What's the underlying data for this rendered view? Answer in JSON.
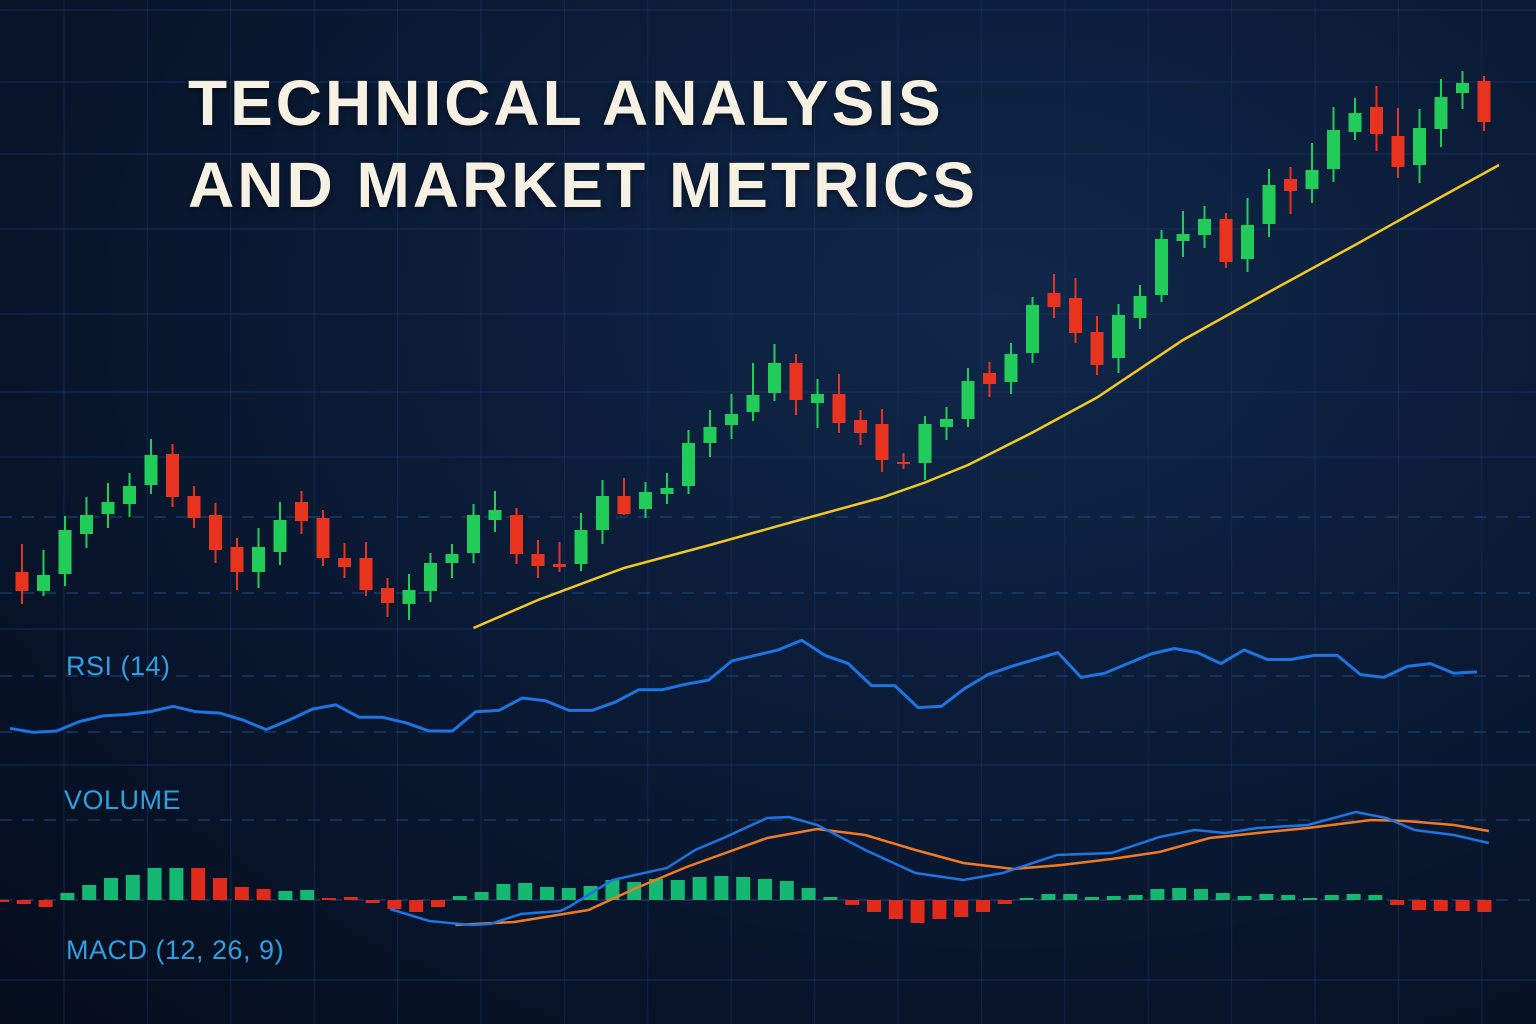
{
  "title": {
    "line1": "TECHNICAL ANALYSIS",
    "line2": "AND MARKET METRICS"
  },
  "panels": {
    "rsi_label": "RSI (14)",
    "volume_label": "VOLUME",
    "macd_label": "MACD (12, 26, 9)"
  },
  "colors": {
    "background": "#0b1c38",
    "grid": "#1a3560",
    "up": "#22cc58",
    "down": "#e8341f",
    "hist_up": "#15b872",
    "hist_down": "#e02b1a",
    "moving_average": "#f2c922",
    "rsi": "#1e74e0",
    "macd": "#1e74e0",
    "signal": "#f07a22",
    "label": "#2f9fe2",
    "title": "#f6f1e2"
  },
  "chart_data": [
    {
      "type": "candlestick",
      "title": "TECHNICAL ANALYSIS AND MARKET METRICS",
      "grid": true,
      "ylim": [
        0,
        128
      ],
      "ohlc": [
        [
          13.6,
          19.2,
          7.2,
          9.8
        ],
        [
          9.8,
          18,
          8.8,
          13
        ],
        [
          13.2,
          24.8,
          10.8,
          22
        ],
        [
          21.2,
          28.6,
          18.4,
          25
        ],
        [
          25.2,
          31.4,
          22.4,
          27.6
        ],
        [
          27.2,
          33.4,
          24.6,
          30.8
        ],
        [
          31,
          40.2,
          29.2,
          37
        ],
        [
          37.2,
          39.2,
          26.6,
          28.6
        ],
        [
          28.8,
          30.8,
          22.4,
          24.4
        ],
        [
          25,
          27.4,
          15.4,
          18
        ],
        [
          18.6,
          20.4,
          10,
          13.6
        ],
        [
          13.6,
          22.4,
          10.4,
          18.6
        ],
        [
          17.6,
          27.6,
          15,
          24
        ],
        [
          27.6,
          29.8,
          21.2,
          23.8
        ],
        [
          24.4,
          26,
          14.8,
          16.4
        ],
        [
          16.4,
          19.4,
          12.4,
          14.6
        ],
        [
          16.4,
          19.6,
          8.8,
          10
        ],
        [
          10.4,
          12.4,
          4.6,
          7.4
        ],
        [
          7.2,
          13.2,
          4,
          10
        ],
        [
          9.8,
          17.4,
          7.6,
          15.4
        ],
        [
          15.4,
          19.2,
          12.4,
          17.2
        ],
        [
          17.4,
          27.2,
          15.4,
          25
        ],
        [
          24,
          29.8,
          21.6,
          26
        ],
        [
          25,
          26.4,
          15.2,
          17.2
        ],
        [
          17.2,
          20,
          12.4,
          14.8
        ],
        [
          15.2,
          19.6,
          13.6,
          14.6
        ],
        [
          15.2,
          25.4,
          13.8,
          22
        ],
        [
          22,
          32,
          19.2,
          28.8
        ],
        [
          28.8,
          32.4,
          25,
          25.2
        ],
        [
          26.2,
          31.6,
          24.4,
          29.6
        ],
        [
          29.2,
          33.4,
          27.2,
          30.4
        ],
        [
          30.8,
          42,
          29.2,
          39.4
        ],
        [
          39.4,
          46,
          36.6,
          42.6
        ],
        [
          43,
          49.2,
          40.2,
          45.2
        ],
        [
          45.6,
          55.4,
          43.8,
          49
        ],
        [
          49.4,
          59.2,
          47.8,
          55.4
        ],
        [
          55.4,
          57.2,
          45,
          48
        ],
        [
          47.4,
          52.2,
          42.4,
          49.2
        ],
        [
          49.2,
          53.2,
          41.4,
          43.4
        ],
        [
          44,
          46,
          39,
          41.4
        ],
        [
          43.2,
          46.2,
          33.6,
          36
        ],
        [
          35.6,
          37.4,
          34.2,
          35.2
        ],
        [
          35.4,
          44.8,
          32,
          43.2
        ],
        [
          42.6,
          46.6,
          40,
          44.2
        ],
        [
          44.2,
          54.4,
          42.6,
          51.8
        ],
        [
          53.4,
          55.6,
          48.6,
          51.2
        ],
        [
          51.6,
          59.4,
          49.2,
          57.2
        ],
        [
          57.4,
          68.6,
          55.4,
          67
        ],
        [
          69.4,
          73.2,
          64.4,
          66.6
        ],
        [
          68.4,
          72.4,
          59.4,
          61.4
        ],
        [
          61.6,
          64.8,
          53,
          55
        ],
        [
          56.4,
          67.2,
          53.4,
          65
        ],
        [
          64.4,
          71,
          62.2,
          68.8
        ],
        [
          69,
          82,
          67.6,
          80.2
        ],
        [
          79.8,
          85.8,
          76.6,
          81.2
        ],
        [
          81,
          86.8,
          78.4,
          84.2
        ],
        [
          84.2,
          85.4,
          74.4,
          75.6
        ],
        [
          76.2,
          88.4,
          73.6,
          83
        ],
        [
          83.2,
          94.2,
          80.6,
          91
        ],
        [
          92.2,
          94.6,
          85.2,
          89.8
        ],
        [
          90.2,
          99.4,
          87.4,
          94
        ],
        [
          94.2,
          106.6,
          91.6,
          102
        ],
        [
          101.6,
          108.4,
          100,
          105.4
        ],
        [
          106.6,
          110.8,
          97.8,
          101.2
        ],
        [
          100.8,
          106.4,
          92.4,
          94.6
        ],
        [
          95,
          106.2,
          91.4,
          102.4
        ],
        [
          102.2,
          112.2,
          98.6,
          108.6
        ],
        [
          109.4,
          113.8,
          106.2,
          111.4
        ],
        [
          111.8,
          112.8,
          101.8,
          103.6
        ]
      ],
      "moving_average": [
        [
          22,
          2.4
        ],
        [
          25,
          8
        ],
        [
          29,
          14.4
        ],
        [
          33,
          19
        ],
        [
          37,
          23.8
        ],
        [
          41,
          28.5
        ],
        [
          43,
          31.5
        ],
        [
          45,
          35
        ],
        [
          48,
          41.5
        ],
        [
          51,
          48.5
        ],
        [
          55,
          60
        ],
        [
          59,
          69.6
        ],
        [
          63,
          79
        ],
        [
          67,
          88.6
        ],
        [
          69.7,
          95
        ]
      ]
    },
    {
      "type": "line",
      "name": "RSI (14)",
      "reference_levels": [
        70,
        30
      ],
      "values": [
        32,
        29,
        30,
        37,
        41,
        42,
        44,
        48,
        44,
        43,
        38,
        31,
        38,
        46,
        49,
        40,
        40,
        36,
        30,
        30,
        44,
        45,
        54,
        52,
        45,
        45,
        51,
        60,
        60,
        64,
        67,
        81,
        85,
        89,
        96,
        85,
        79,
        63,
        63,
        47,
        48,
        61,
        71,
        77,
        82,
        87,
        69,
        72,
        79,
        86,
        90,
        87,
        79,
        89,
        82,
        82,
        85,
        85,
        71,
        69,
        77,
        79,
        72,
        73
      ]
    },
    {
      "type": "bar",
      "name": "MACD (12, 26, 9)",
      "histogram": [
        -0.1,
        -0.4,
        -0.7,
        0.7,
        1.5,
        2.2,
        2.5,
        3.2,
        3.2,
        3.2,
        2.2,
        1.3,
        1.1,
        0.9,
        1.0,
        0.2,
        0.3,
        -0.3,
        -0.9,
        -1.2,
        -0.7,
        0.4,
        0.8,
        1.6,
        1.7,
        1.3,
        1.2,
        1.4,
        2.0,
        1.8,
        2.1,
        2.0,
        2.3,
        2.4,
        2.3,
        2.1,
        1.9,
        1.2,
        0.3,
        -0.5,
        -1.2,
        -1.9,
        -2.3,
        -1.9,
        -1.7,
        -1.2,
        -0.4,
        0.2,
        0.6,
        0.6,
        0.3,
        0.4,
        0.5,
        1.1,
        1.2,
        1.1,
        0.7,
        0.4,
        0.6,
        0.5,
        0.2,
        0.5,
        0.6,
        0.5,
        -0.5,
        -1.0,
        -1.1,
        -1.1,
        -1.2
      ],
      "histogram_colors": [
        "red",
        "red",
        "red",
        "green",
        "green",
        "green",
        "green",
        "green",
        "green",
        "red",
        "red",
        "red",
        "red",
        "green",
        "green",
        "red",
        "red",
        "red",
        "red",
        "red",
        "red",
        "green",
        "green",
        "green",
        "green",
        "green",
        "green",
        "green",
        "green",
        "green",
        "green",
        "green",
        "green",
        "green",
        "green",
        "green",
        "green",
        "green",
        "green",
        "red",
        "red",
        "red",
        "red",
        "red",
        "red",
        "red",
        "red",
        "green",
        "green",
        "green",
        "green",
        "green",
        "green",
        "green",
        "green",
        "green",
        "green",
        "green",
        "green",
        "green",
        "green",
        "green",
        "green",
        "green",
        "red",
        "red",
        "red",
        "red",
        "red"
      ],
      "macd_line": [
        [
          17.8,
          -0.9
        ],
        [
          19.6,
          -2.1
        ],
        [
          21.5,
          -2.5
        ],
        [
          22.4,
          -2.4
        ],
        [
          23.8,
          -1.4
        ],
        [
          25.6,
          -1.1
        ],
        [
          26,
          -0.7
        ],
        [
          28,
          2.0
        ],
        [
          30.5,
          3.2
        ],
        [
          31.8,
          5.0
        ],
        [
          33.2,
          6.3
        ],
        [
          35.1,
          8.2
        ],
        [
          36.1,
          8.3
        ],
        [
          37.4,
          7.5
        ],
        [
          39.6,
          5.0
        ],
        [
          41.9,
          2.7
        ],
        [
          44.1,
          2.0
        ],
        [
          45.9,
          2.7
        ],
        [
          48.4,
          4.5
        ],
        [
          50.9,
          4.7
        ],
        [
          53.1,
          6.3
        ],
        [
          54.7,
          7.0
        ],
        [
          56.1,
          6.7
        ],
        [
          57.6,
          7.2
        ],
        [
          59.9,
          7.5
        ],
        [
          62.1,
          8.8
        ],
        [
          63.5,
          8.2
        ],
        [
          64.8,
          7.0
        ],
        [
          66.6,
          6.5
        ],
        [
          68.2,
          5.7
        ]
      ],
      "signal_line": [
        [
          20.8,
          -2.5
        ],
        [
          23.5,
          -2.2
        ],
        [
          26.9,
          -1.0
        ],
        [
          29.1,
          1.2
        ],
        [
          31.4,
          3.3
        ],
        [
          35.1,
          6.2
        ],
        [
          37.4,
          7.1
        ],
        [
          39.6,
          6.5
        ],
        [
          41.9,
          5.0
        ],
        [
          44.1,
          3.7
        ],
        [
          46.4,
          3.1
        ],
        [
          48.6,
          3.5
        ],
        [
          50.9,
          4.1
        ],
        [
          53.1,
          4.8
        ],
        [
          55.4,
          6.2
        ],
        [
          57.6,
          6.7
        ],
        [
          59.9,
          7.2
        ],
        [
          62.8,
          8.0
        ],
        [
          64.4,
          7.9
        ],
        [
          66.6,
          7.5
        ],
        [
          68.2,
          6.9
        ]
      ]
    }
  ]
}
